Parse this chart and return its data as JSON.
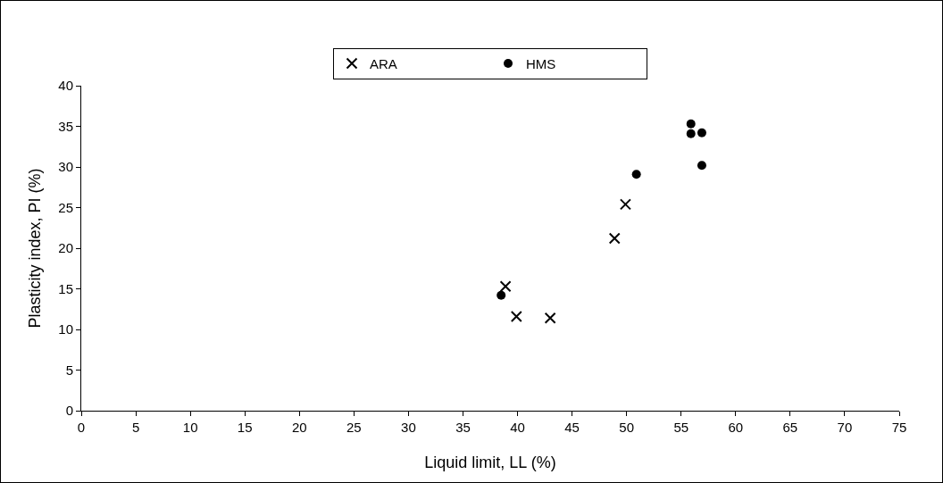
{
  "chart_data": {
    "type": "scatter",
    "xlabel": "Liquid limit, LL (%)",
    "ylabel": "Plasticity index, PI (%)",
    "xlim": [
      0,
      75
    ],
    "xticks": [
      0,
      5,
      10,
      15,
      20,
      25,
      30,
      35,
      40,
      45,
      50,
      55,
      60,
      65,
      70,
      75
    ],
    "ylim": [
      0,
      40
    ],
    "yticks": [
      0,
      5,
      10,
      15,
      20,
      25,
      30,
      35,
      40
    ],
    "grid": false,
    "legend": "top",
    "series": [
      {
        "name": "ARA",
        "color": "#000000",
        "marker": "cross",
        "x": [
          38.9,
          39.9,
          43.0,
          48.9,
          49.9
        ],
        "values": [
          15.3,
          11.6,
          11.4,
          21.2,
          25.4
        ]
      },
      {
        "name": "HMS",
        "color": "#000000",
        "marker": "circle",
        "x": [
          38.5,
          50.9,
          55.9,
          55.9,
          56.9,
          56.9
        ],
        "values": [
          14.2,
          29.1,
          35.3,
          34.1,
          34.2,
          30.2
        ]
      }
    ]
  }
}
